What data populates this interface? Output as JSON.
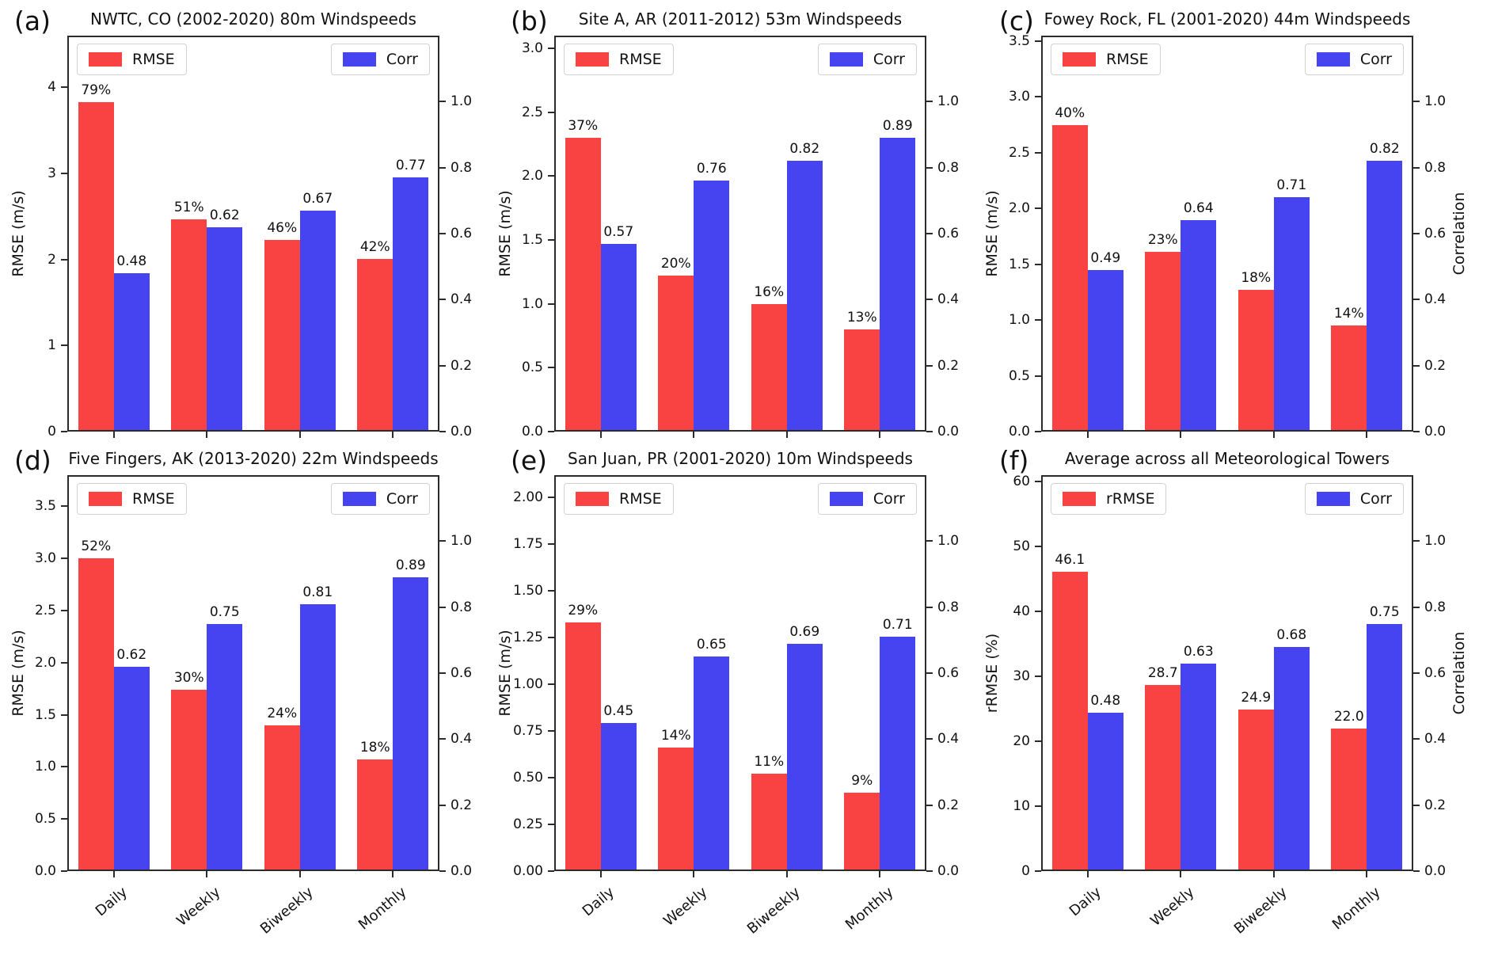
{
  "figure": {
    "background": "#ffffff",
    "x_category_labels": [
      "Daily",
      "Weekly",
      "Biweekly",
      "Monthly"
    ]
  },
  "colors": {
    "rmse_bar": "#f94343",
    "corr_bar": "#4644f0",
    "spine": "#2b2b2b",
    "text": "#111111"
  },
  "chart_data": [
    {
      "type": "bar",
      "panel_letter": "(a)",
      "title": "NWTC, CO (2002-2020) 80m Windspeeds",
      "categories": [
        "Daily",
        "Weekly",
        "Biweekly",
        "Monthly"
      ],
      "series": [
        {
          "name": "RMSE",
          "axis": "left",
          "values": [
            3.83,
            2.47,
            2.23,
            2.01
          ],
          "labels": [
            "79%",
            "51%",
            "46%",
            "42%"
          ]
        },
        {
          "name": "Corr",
          "axis": "right",
          "values": [
            0.48,
            0.62,
            0.67,
            0.77
          ],
          "labels": [
            "0.48",
            "0.62",
            "0.67",
            "0.77"
          ]
        }
      ],
      "left_axis": {
        "label": "RMSE (m/s)",
        "ticks": [
          "0",
          "1",
          "2",
          "3",
          "4"
        ],
        "max": 4.6
      },
      "right_axis": {
        "label": null,
        "ticks": [
          "0.0",
          "0.2",
          "0.4",
          "0.6",
          "0.8",
          "1.0"
        ],
        "max": 1.2
      },
      "show_x_tick_labels": false,
      "legend": [
        "RMSE",
        "Corr"
      ]
    },
    {
      "type": "bar",
      "panel_letter": "(b)",
      "title": "Site A, AR (2011-2012) 53m Windspeeds",
      "categories": [
        "Daily",
        "Weekly",
        "Biweekly",
        "Monthly"
      ],
      "series": [
        {
          "name": "RMSE",
          "axis": "left",
          "values": [
            2.3,
            1.22,
            1.0,
            0.8
          ],
          "labels": [
            "37%",
            "20%",
            "16%",
            "13%"
          ]
        },
        {
          "name": "Corr",
          "axis": "right",
          "values": [
            0.57,
            0.76,
            0.82,
            0.89
          ],
          "labels": [
            "0.57",
            "0.76",
            "0.82",
            "0.89"
          ]
        }
      ],
      "left_axis": {
        "label": "RMSE (m/s)",
        "ticks": [
          "0.0",
          "0.5",
          "1.0",
          "1.5",
          "2.0",
          "2.5",
          "3.0"
        ],
        "max": 3.1
      },
      "right_axis": {
        "label": null,
        "ticks": [
          "0.0",
          "0.2",
          "0.4",
          "0.6",
          "0.8",
          "1.0"
        ],
        "max": 1.2
      },
      "show_x_tick_labels": false,
      "legend": [
        "RMSE",
        "Corr"
      ]
    },
    {
      "type": "bar",
      "panel_letter": "(c)",
      "title": "Fowey Rock, FL (2001-2020) 44m Windspeeds",
      "categories": [
        "Daily",
        "Weekly",
        "Biweekly",
        "Monthly"
      ],
      "series": [
        {
          "name": "RMSE",
          "axis": "left",
          "values": [
            2.75,
            1.61,
            1.27,
            0.95
          ],
          "labels": [
            "40%",
            "23%",
            "18%",
            "14%"
          ]
        },
        {
          "name": "Corr",
          "axis": "right",
          "values": [
            0.49,
            0.64,
            0.71,
            0.82
          ],
          "labels": [
            "0.49",
            "0.64",
            "0.71",
            "0.82"
          ]
        }
      ],
      "left_axis": {
        "label": "RMSE (m/s)",
        "ticks": [
          "0.0",
          "0.5",
          "1.0",
          "1.5",
          "2.0",
          "2.5",
          "3.0",
          "3.5"
        ],
        "max": 3.55
      },
      "right_axis": {
        "label": "Correlation",
        "ticks": [
          "0.0",
          "0.2",
          "0.4",
          "0.6",
          "0.8",
          "1.0"
        ],
        "max": 1.2
      },
      "show_x_tick_labels": false,
      "legend": [
        "RMSE",
        "Corr"
      ]
    },
    {
      "type": "bar",
      "panel_letter": "(d)",
      "title": "Five Fingers, AK (2013-2020) 22m Windspeeds",
      "categories": [
        "Daily",
        "Weekly",
        "Biweekly",
        "Monthly"
      ],
      "series": [
        {
          "name": "RMSE",
          "axis": "left",
          "values": [
            3.0,
            1.74,
            1.4,
            1.07
          ],
          "labels": [
            "52%",
            "30%",
            "24%",
            "18%"
          ]
        },
        {
          "name": "Corr",
          "axis": "right",
          "values": [
            0.62,
            0.75,
            0.81,
            0.89
          ],
          "labels": [
            "0.62",
            "0.75",
            "0.81",
            "0.89"
          ]
        }
      ],
      "left_axis": {
        "label": "RMSE (m/s)",
        "ticks": [
          "0.0",
          "0.5",
          "1.0",
          "1.5",
          "2.0",
          "2.5",
          "3.0",
          "3.5"
        ],
        "max": 3.8
      },
      "right_axis": {
        "label": null,
        "ticks": [
          "0.0",
          "0.2",
          "0.4",
          "0.6",
          "0.8",
          "1.0"
        ],
        "max": 1.2
      },
      "show_x_tick_labels": true,
      "legend": [
        "RMSE",
        "Corr"
      ]
    },
    {
      "type": "bar",
      "panel_letter": "(e)",
      "title": "San Juan, PR (2001-2020) 10m Windspeeds",
      "categories": [
        "Daily",
        "Weekly",
        "Biweekly",
        "Monthly"
      ],
      "series": [
        {
          "name": "RMSE",
          "axis": "left",
          "values": [
            1.33,
            0.66,
            0.52,
            0.42
          ],
          "labels": [
            "29%",
            "14%",
            "11%",
            "9%"
          ]
        },
        {
          "name": "Corr",
          "axis": "right",
          "values": [
            0.45,
            0.65,
            0.69,
            0.71
          ],
          "labels": [
            "0.45",
            "0.65",
            "0.69",
            "0.71"
          ]
        }
      ],
      "left_axis": {
        "label": "RMSE (m/s)",
        "ticks": [
          "0.00",
          "0.25",
          "0.50",
          "0.75",
          "1.00",
          "1.25",
          "1.50",
          "1.75",
          "2.00"
        ],
        "max": 2.12
      },
      "right_axis": {
        "label": null,
        "ticks": [
          "0.0",
          "0.2",
          "0.4",
          "0.6",
          "0.8",
          "1.0"
        ],
        "max": 1.2
      },
      "show_x_tick_labels": true,
      "legend": [
        "RMSE",
        "Corr"
      ]
    },
    {
      "type": "bar",
      "panel_letter": "(f)",
      "title": "Average across all Meteorological Towers",
      "categories": [
        "Daily",
        "Weekly",
        "Biweekly",
        "Monthly"
      ],
      "series": [
        {
          "name": "rRMSE",
          "axis": "left",
          "values": [
            46.1,
            28.7,
            24.9,
            22.0
          ],
          "labels": [
            "46.1",
            "28.7",
            "24.9",
            "22.0"
          ]
        },
        {
          "name": "Corr",
          "axis": "right",
          "values": [
            0.48,
            0.63,
            0.68,
            0.75
          ],
          "labels": [
            "0.48",
            "0.63",
            "0.68",
            "0.75"
          ]
        }
      ],
      "left_axis": {
        "label": "rRMSE (%)",
        "ticks": [
          "0",
          "10",
          "20",
          "30",
          "40",
          "50",
          "60"
        ],
        "max": 61
      },
      "right_axis": {
        "label": "Correlation",
        "ticks": [
          "0.0",
          "0.2",
          "0.4",
          "0.6",
          "0.8",
          "1.0"
        ],
        "max": 1.2
      },
      "show_x_tick_labels": true,
      "legend": [
        "rRMSE",
        "Corr"
      ]
    }
  ]
}
